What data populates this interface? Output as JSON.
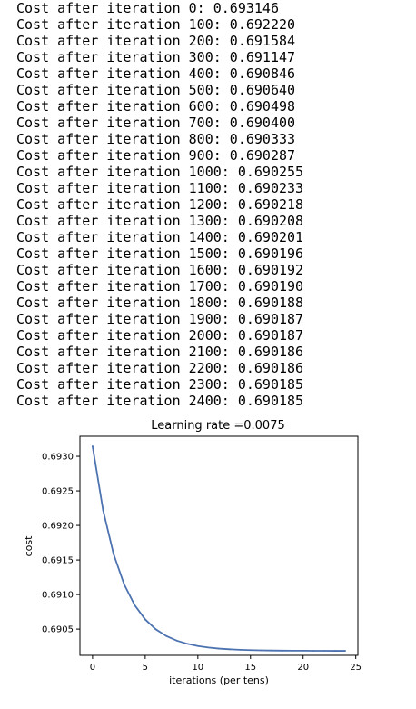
{
  "output_log": [
    "Cost after iteration 0: 0.693146",
    "Cost after iteration 100: 0.692220",
    "Cost after iteration 200: 0.691584",
    "Cost after iteration 300: 0.691147",
    "Cost after iteration 400: 0.690846",
    "Cost after iteration 500: 0.690640",
    "Cost after iteration 600: 0.690498",
    "Cost after iteration 700: 0.690400",
    "Cost after iteration 800: 0.690333",
    "Cost after iteration 900: 0.690287",
    "Cost after iteration 1000: 0.690255",
    "Cost after iteration 1100: 0.690233",
    "Cost after iteration 1200: 0.690218",
    "Cost after iteration 1300: 0.690208",
    "Cost after iteration 1400: 0.690201",
    "Cost after iteration 1500: 0.690196",
    "Cost after iteration 1600: 0.690192",
    "Cost after iteration 1700: 0.690190",
    "Cost after iteration 1800: 0.690188",
    "Cost after iteration 1900: 0.690187",
    "Cost after iteration 2000: 0.690187",
    "Cost after iteration 2100: 0.690186",
    "Cost after iteration 2200: 0.690186",
    "Cost after iteration 2300: 0.690185",
    "Cost after iteration 2400: 0.690185"
  ],
  "chart_data": {
    "type": "line",
    "title": "Learning rate =0.0075",
    "xlabel": "iterations (per tens)",
    "ylabel": "cost",
    "xlim": [
      -1.2,
      25.2
    ],
    "ylim": [
      0.69012,
      0.69329
    ],
    "xticks": [
      0,
      5,
      10,
      15,
      20,
      25
    ],
    "yticks": [
      0.6905,
      0.691,
      0.6915,
      0.692,
      0.6925,
      0.693
    ],
    "ytick_labels": [
      "0.6905",
      "0.6910",
      "0.6915",
      "0.6920",
      "0.6925",
      "0.6930"
    ],
    "grid": false,
    "line_color": "#4c72b0",
    "series": [
      {
        "x": [
          0,
          1,
          2,
          3,
          4,
          5,
          6,
          7,
          8,
          9,
          10,
          11,
          12,
          13,
          14,
          15,
          16,
          17,
          18,
          19,
          20,
          21,
          22,
          23,
          24
        ],
        "values": [
          0.693146,
          0.69222,
          0.691584,
          0.691147,
          0.690846,
          0.69064,
          0.690498,
          0.6904,
          0.690333,
          0.690287,
          0.690255,
          0.690233,
          0.690218,
          0.690208,
          0.690201,
          0.690196,
          0.690192,
          0.69019,
          0.690188,
          0.690187,
          0.690187,
          0.690186,
          0.690186,
          0.690185,
          0.690185
        ]
      }
    ]
  }
}
